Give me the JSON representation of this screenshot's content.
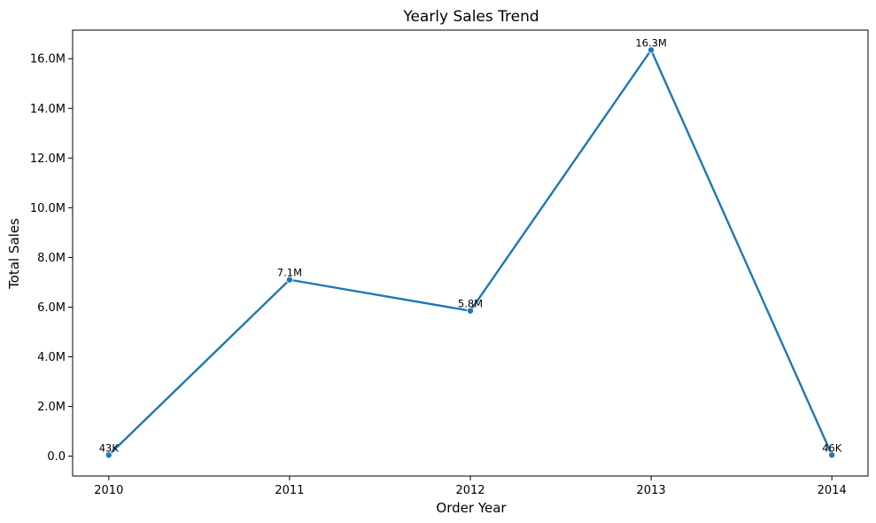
{
  "chart_data": {
    "type": "line",
    "title": "Yearly Sales Trend",
    "xlabel": "Order Year",
    "ylabel": "Total Sales",
    "x": [
      2010,
      2011,
      2012,
      2013,
      2014
    ],
    "x_tick_labels": [
      "2010",
      "2011",
      "2012",
      "2013",
      "2014"
    ],
    "series": [
      {
        "values": [
          43000,
          7100000,
          5850000,
          16350000,
          46000
        ],
        "data_labels": [
          "43K",
          "7.1M",
          "5.8M",
          "16.3M",
          "46K"
        ],
        "color": "#1f77b4",
        "marker": "circle"
      }
    ],
    "y_ticks": [
      0,
      2000000,
      4000000,
      6000000,
      8000000,
      10000000,
      12000000,
      14000000,
      16000000
    ],
    "y_tick_labels": [
      "0.0",
      "2.0M",
      "4.0M",
      "6.0M",
      "8.0M",
      "10.0M",
      "12.0M",
      "14.0M",
      "16.0M"
    ],
    "xlim": [
      2009.8,
      2014.2
    ],
    "ylim": [
      -800000,
      17150000
    ],
    "grid": false,
    "legend": "none"
  }
}
